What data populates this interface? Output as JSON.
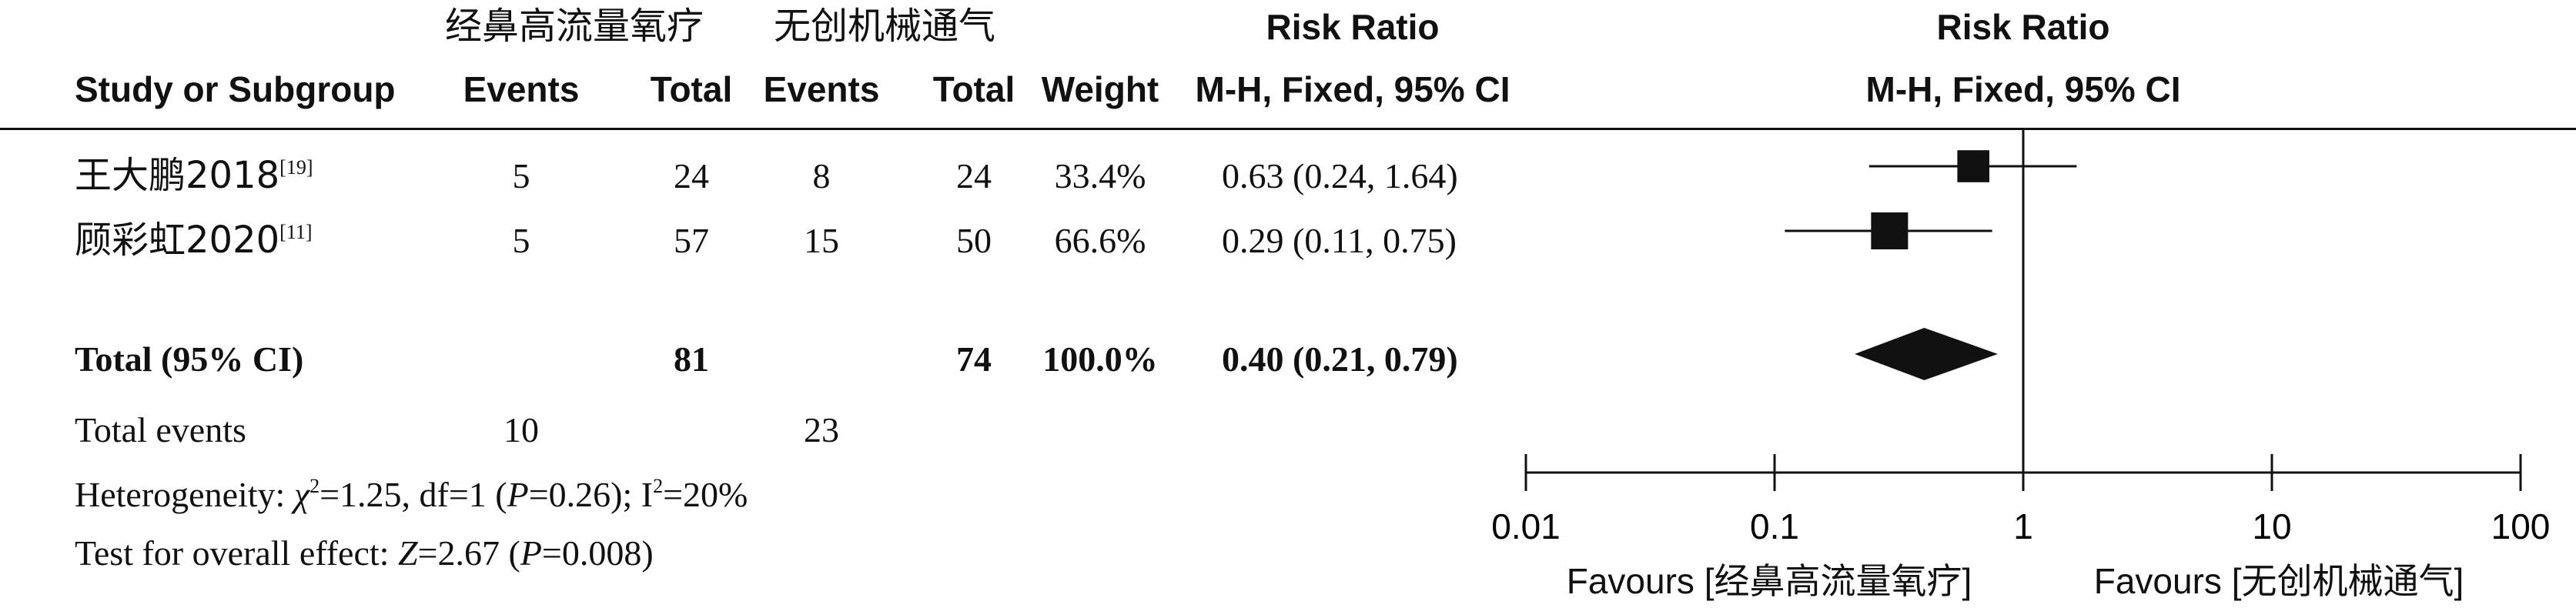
{
  "header": {
    "group1": "经鼻高流量氧疗",
    "group2": "无创机械通气",
    "rr_title_left": "Risk Ratio",
    "rr_title_right": "Risk Ratio",
    "col_study": "Study or Subgroup",
    "col_events1": "Events",
    "col_total1": "Total",
    "col_events2": "Events",
    "col_total2": "Total",
    "col_weight": "Weight",
    "col_method_left": "M-H, Fixed, 95% CI",
    "col_method_right": "M-H, Fixed, 95% CI"
  },
  "total": {
    "label": "Total (95% CI)",
    "total1": "81",
    "total2": "74",
    "weight": "100.0%",
    "rr_text": "0.40 (0.21, 0.79)"
  },
  "total_events": {
    "label": "Total events",
    "events1": "10",
    "events2": "23"
  },
  "heterogeneity": {
    "prefix": "Heterogeneity: ",
    "chi": "χ",
    "sq": "2",
    "mid": "=1.25, df=1 (",
    "p": "P",
    "p_val": "=0.26); I",
    "sq2": "2",
    "tail": "=20%"
  },
  "overall": {
    "prefix": "Test for overall effect: ",
    "z": "Z",
    "z_val": "=2.67 (",
    "p": "P",
    "p_val": "=0.008)"
  },
  "favours": {
    "left": "Favours [经鼻高流量氧疗]",
    "right": "Favours [无创机械通气]"
  },
  "chart_data": {
    "type": "forest",
    "scale": "log",
    "xlim": [
      0.01,
      100
    ],
    "x_ticks": [
      {
        "value": 0.01,
        "label": "0.01"
      },
      {
        "value": 0.1,
        "label": "0.1"
      },
      {
        "value": 1,
        "label": "1"
      },
      {
        "value": 10,
        "label": "10"
      },
      {
        "value": 100,
        "label": "100"
      }
    ],
    "studies": [
      {
        "name": "王大鹏2018",
        "ref": "[19]",
        "events1": "5",
        "total1": "24",
        "events2": "8",
        "total2": "24",
        "weight": "33.4%",
        "rr_text": "0.63 (0.24, 1.64)",
        "rr": 0.63,
        "lo": 0.24,
        "hi": 1.64,
        "w": 33.4
      },
      {
        "name": "顾彩虹2020",
        "ref": "[11]",
        "events1": "5",
        "total1": "57",
        "events2": "15",
        "total2": "50",
        "weight": "66.6%",
        "rr_text": "0.29 (0.11, 0.75)",
        "rr": 0.29,
        "lo": 0.11,
        "hi": 0.75,
        "w": 66.6
      }
    ],
    "pooled": {
      "rr": 0.4,
      "lo": 0.21,
      "hi": 0.79
    }
  }
}
